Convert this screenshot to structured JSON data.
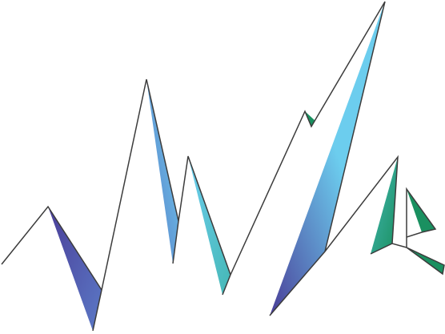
{
  "background": "#ffffff",
  "line_color": "#3c3c3c",
  "palette": {
    "indigo": "#4a3e98",
    "blue": "#5b79c6",
    "sky": "#6ccdee",
    "teal": "#45b8b6",
    "green": "#1a9060"
  }
}
